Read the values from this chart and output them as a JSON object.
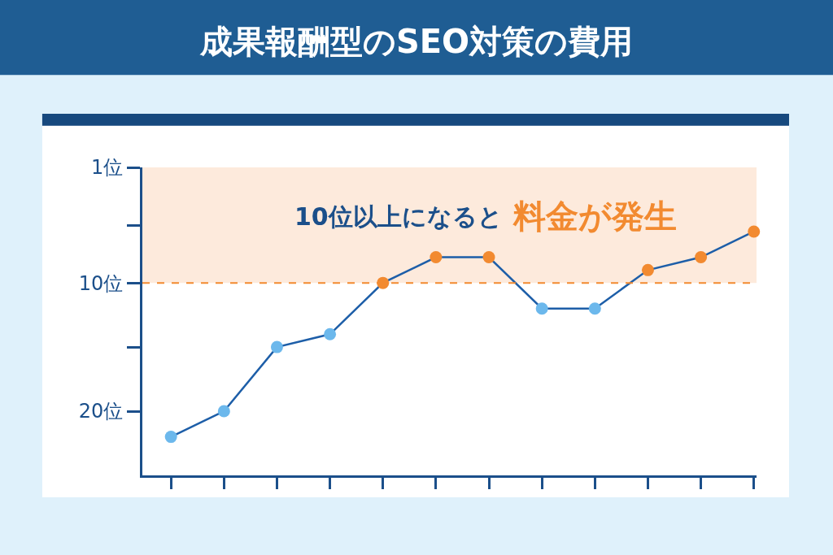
{
  "chart_data": {
    "type": "line",
    "title": "成果報酬型のSEO対策の費用",
    "categories": [
      null,
      null,
      null,
      null,
      null,
      null,
      null,
      null,
      null,
      null,
      null,
      null
    ],
    "series": [
      {
        "color": "#1d5ea8",
        "values": [
          22,
          20,
          15,
          14,
          10,
          8,
          8,
          12,
          12,
          9,
          8,
          6
        ],
        "colors": [
          "#6cb8ec",
          "#6cb8ec",
          "#6cb8ec",
          "#6cb8ec",
          "#f28a30",
          "#f28a30",
          "#f28a30",
          "#6cb8ec",
          "#6cb8ec",
          "#f28a30",
          "#f28a30",
          "#f28a30"
        ]
      }
    ],
    "ylim": [
      25,
      1
    ],
    "yticks": [
      {
        "value": 1,
        "label": "1位"
      },
      {
        "value": 5.5,
        "label": null
      },
      {
        "value": 10,
        "label": "10位"
      },
      {
        "value": 15,
        "label": null
      },
      {
        "value": 20,
        "label": "20位"
      }
    ],
    "bands": [
      {
        "axis": "y",
        "from": 1,
        "to": 10,
        "label": "10位以上になると",
        "color": "#fdeadc"
      }
    ],
    "ref_lines": [
      {
        "axis": "y",
        "value": 10,
        "label": null,
        "color": "#f28a30",
        "line_style": "dashed"
      }
    ],
    "annotations": [
      "料金が発生"
    ],
    "marker": "circle",
    "line_style": "solid",
    "grid": false,
    "tick_labels": "y"
  }
}
